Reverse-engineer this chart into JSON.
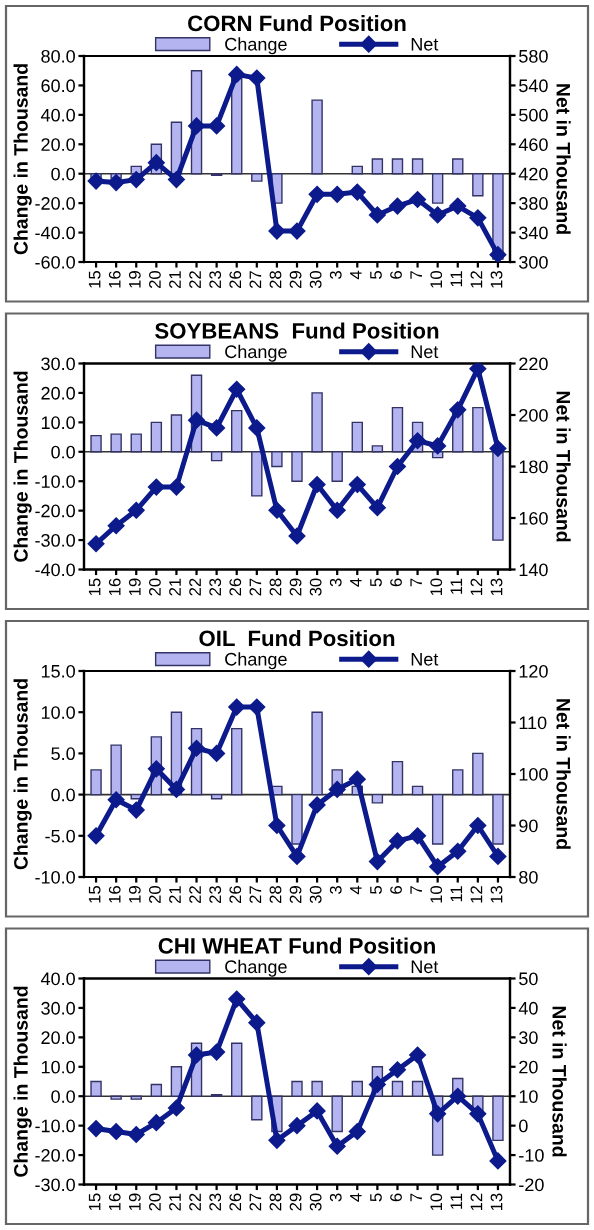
{
  "chart_data": [
    {
      "type": "bar",
      "title": "CORN Fund Position",
      "ylabel": "Change in Thousand",
      "y2label": "Net in Thousand",
      "legend": "top",
      "ref_lines": [
        {
          "axis": "y",
          "value": 0
        }
      ],
      "marker": "diamond",
      "categories": [
        "15",
        "16",
        "19",
        "20",
        "21",
        "22",
        "23",
        "26",
        "27",
        "28",
        "29",
        "30",
        "3",
        "4",
        "5",
        "6",
        "7",
        "10",
        "11",
        "12",
        "13"
      ],
      "series": [
        {
          "name": "Change",
          "color": "#b4b4f0",
          "values": [
            -3,
            -3,
            5,
            20,
            35,
            70,
            -1,
            68,
            -5,
            -20,
            0,
            50,
            0,
            5,
            10,
            10,
            10,
            -20,
            10,
            -15,
            -58
          ]
        },
        {
          "name": "Net",
          "type": "line",
          "axis": "y2",
          "color": "#0c1a8c",
          "values": [
            410,
            408,
            412,
            435,
            412,
            485,
            485,
            555,
            550,
            342,
            342,
            392,
            392,
            395,
            364,
            376,
            385,
            364,
            376,
            360,
            310
          ]
        }
      ],
      "ylim": [
        -60,
        80
      ],
      "yticks": [
        {
          "value": -60,
          "label": "-60.0"
        },
        {
          "value": -40,
          "label": "-40.0"
        },
        {
          "value": -20,
          "label": "-20.0"
        },
        {
          "value": 0,
          "label": "0.0"
        },
        {
          "value": 20,
          "label": "20.0"
        },
        {
          "value": 40,
          "label": "40.0"
        },
        {
          "value": 60,
          "label": "60.0"
        },
        {
          "value": 80,
          "label": "80.0"
        }
      ],
      "y2lim": [
        300,
        580
      ],
      "y2ticks": [
        300,
        340,
        380,
        420,
        460,
        500,
        540,
        580
      ]
    },
    {
      "type": "bar",
      "title": "SOYBEANS  Fund Position",
      "ylabel": "Change in Thousand",
      "y2label": "Net in Thousand",
      "legend": "top",
      "ref_lines": [
        {
          "axis": "y",
          "value": 0
        }
      ],
      "marker": "diamond",
      "categories": [
        "15",
        "16",
        "19",
        "20",
        "21",
        "22",
        "23",
        "26",
        "27",
        "28",
        "29",
        "30",
        "3",
        "4",
        "5",
        "6",
        "7",
        "10",
        "11",
        "12",
        "13"
      ],
      "series": [
        {
          "name": "Change",
          "color": "#b4b4f0",
          "values": [
            5.5,
            6,
            6,
            10,
            12.5,
            26,
            -3,
            14,
            -15,
            -5,
            -10,
            20,
            -10,
            10,
            2,
            15,
            10,
            -2,
            15,
            15,
            -30
          ]
        },
        {
          "name": "Net",
          "type": "line",
          "axis": "y2",
          "color": "#0c1a8c",
          "values": [
            150,
            157,
            163,
            172,
            172,
            198,
            195,
            210,
            195,
            163,
            153,
            173,
            163,
            173,
            164,
            180,
            190,
            188,
            202,
            218,
            187
          ]
        }
      ],
      "ylim": [
        -40,
        30
      ],
      "yticks": [
        {
          "value": -40,
          "label": "-40.0"
        },
        {
          "value": -30,
          "label": "-30.0"
        },
        {
          "value": -20,
          "label": "-20.0"
        },
        {
          "value": -10,
          "label": "-10.0"
        },
        {
          "value": 0,
          "label": "0.0"
        },
        {
          "value": 10,
          "label": "10.0"
        },
        {
          "value": 20,
          "label": "20.0"
        },
        {
          "value": 30,
          "label": "30.0"
        }
      ],
      "y2lim": [
        140,
        220
      ],
      "y2ticks": [
        140,
        160,
        180,
        200,
        220
      ]
    },
    {
      "type": "bar",
      "title": "OIL  Fund Position",
      "ylabel": "Change in Thousand",
      "y2label": "Net in Thousand",
      "legend": "top",
      "ref_lines": [
        {
          "axis": "y",
          "value": 0
        }
      ],
      "marker": "diamond",
      "categories": [
        "15",
        "16",
        "19",
        "20",
        "21",
        "22",
        "23",
        "26",
        "27",
        "28",
        "29",
        "30",
        "3",
        "4",
        "5",
        "6",
        "7",
        "10",
        "11",
        "12",
        "13"
      ],
      "series": [
        {
          "name": "Change",
          "color": "#b4b4f0",
          "values": [
            3,
            6,
            -0.5,
            7,
            10,
            8,
            -0.5,
            8,
            0,
            1,
            -6,
            10,
            3,
            1,
            -1,
            4,
            1,
            -6,
            3,
            5,
            -6
          ]
        },
        {
          "name": "Net",
          "type": "line",
          "axis": "y2",
          "color": "#0c1a8c",
          "values": [
            88,
            95,
            93,
            101,
            97,
            105,
            104,
            113,
            113,
            90,
            84,
            94,
            97,
            99,
            83,
            87,
            88,
            82,
            85,
            90,
            84
          ]
        }
      ],
      "ylim": [
        -10,
        15
      ],
      "yticks": [
        {
          "value": -10,
          "label": "-10.0"
        },
        {
          "value": -5,
          "label": "-5.0"
        },
        {
          "value": 0,
          "label": "0.0"
        },
        {
          "value": 5,
          "label": "5.0"
        },
        {
          "value": 10,
          "label": "10.0"
        },
        {
          "value": 15,
          "label": "15.0"
        }
      ],
      "y2lim": [
        80,
        120
      ],
      "y2ticks": [
        80,
        90,
        100,
        110,
        120
      ]
    },
    {
      "type": "bar",
      "title": "CHI WHEAT Fund Position",
      "ylabel": "Change in Thousand",
      "y2label": "Net in Thousand",
      "legend": "top",
      "ref_lines": [
        {
          "axis": "y",
          "value": 0
        }
      ],
      "marker": "diamond",
      "categories": [
        "15",
        "16",
        "19",
        "20",
        "21",
        "22",
        "23",
        "26",
        "27",
        "28",
        "29",
        "30",
        "3",
        "4",
        "5",
        "6",
        "7",
        "10",
        "11",
        "12",
        "13"
      ],
      "series": [
        {
          "name": "Change",
          "color": "#b4b4f0",
          "values": [
            5,
            -1,
            -1,
            4,
            10,
            18,
            0.5,
            18,
            -8,
            -12,
            5,
            5,
            -12,
            5,
            10,
            5,
            5,
            -20,
            6,
            -5,
            -15
          ]
        },
        {
          "name": "Net",
          "type": "line",
          "axis": "y2",
          "color": "#0c1a8c",
          "values": [
            -1,
            -2,
            -3,
            1,
            6,
            24,
            25,
            43,
            35,
            -5,
            0,
            5,
            -7,
            -2,
            14,
            19,
            24,
            4,
            10,
            4,
            -12
          ]
        }
      ],
      "ylim": [
        -30,
        40
      ],
      "yticks": [
        {
          "value": -30,
          "label": "-30.0"
        },
        {
          "value": -20,
          "label": "-20.0"
        },
        {
          "value": -10,
          "label": "-10.0"
        },
        {
          "value": 0,
          "label": "0.0"
        },
        {
          "value": 10,
          "label": "10.0"
        },
        {
          "value": 20,
          "label": "20.0"
        },
        {
          "value": 30,
          "label": "30.0"
        },
        {
          "value": 40,
          "label": "40.0"
        }
      ],
      "y2lim": [
        -20,
        50
      ],
      "y2ticks": [
        -20,
        -10,
        0,
        10,
        20,
        30,
        40,
        50
      ]
    }
  ]
}
